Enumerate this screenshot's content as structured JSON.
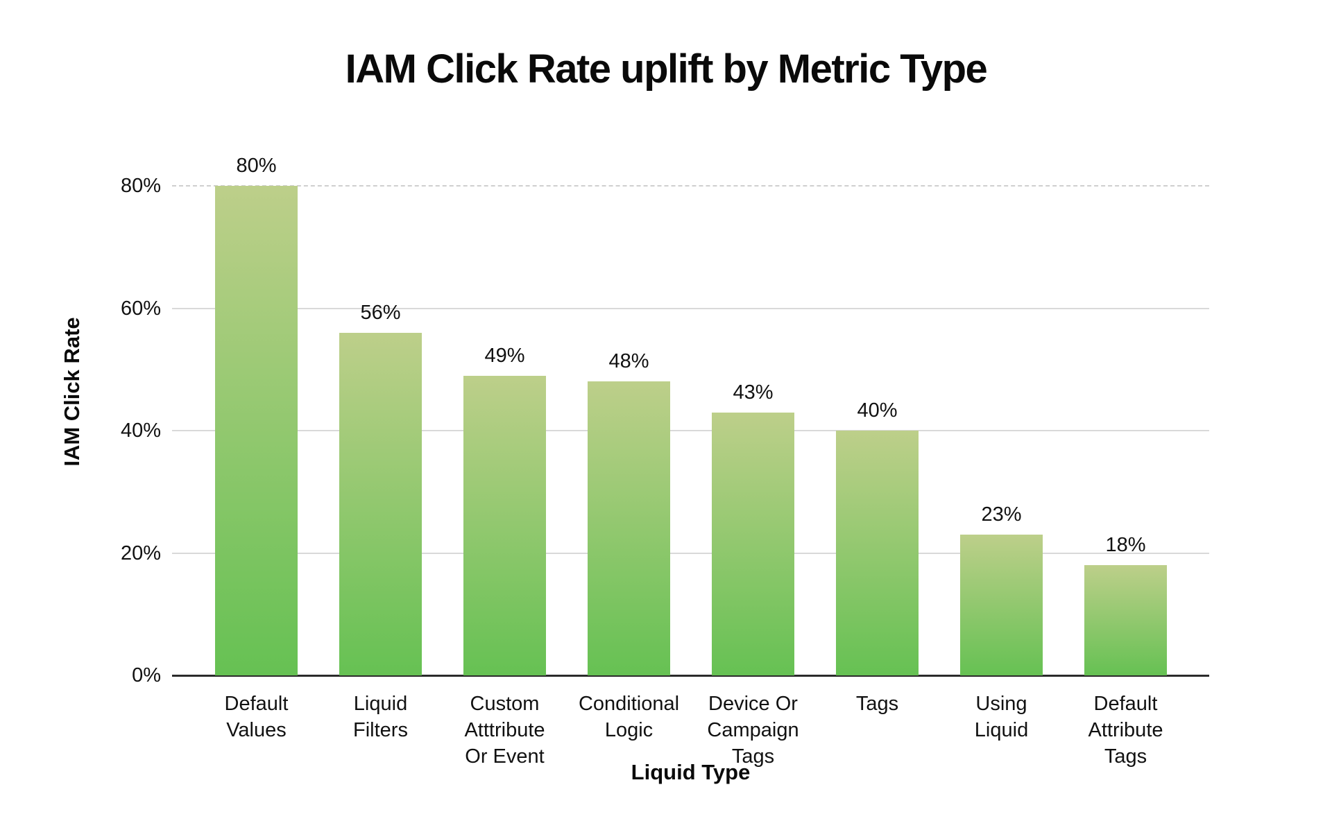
{
  "title": "IAM Click Rate uplift by Metric Type",
  "chart_data": {
    "type": "bar",
    "title": "IAM Click Rate uplift by Metric Type",
    "xlabel": "Liquid Type",
    "ylabel": "IAM Click Rate",
    "categories": [
      "Default Values",
      "Liquid Filters",
      "Custom Atttribute Or Event",
      "Conditional Logic",
      "Device Or Campaign Tags",
      "Tags",
      "Using Liquid",
      "Default Attribute Tags"
    ],
    "category_lines": [
      [
        "Default",
        "Values"
      ],
      [
        "Liquid",
        "Filters"
      ],
      [
        "Custom",
        "Atttribute",
        "Or Event"
      ],
      [
        "Conditional",
        "Logic"
      ],
      [
        "Device Or",
        "Campaign",
        "Tags"
      ],
      [
        "Tags"
      ],
      [
        "Using",
        "Liquid"
      ],
      [
        "Default",
        "Attribute",
        "Tags"
      ]
    ],
    "values": [
      80,
      56,
      49,
      48,
      43,
      40,
      23,
      18
    ],
    "value_labels": [
      "80%",
      "56%",
      "49%",
      "48%",
      "43%",
      "40%",
      "23%",
      "18%"
    ],
    "ylim": [
      0,
      80
    ],
    "ytick_values": [
      0,
      20,
      40,
      60,
      80
    ],
    "ytick_labels": [
      "0%",
      "20%",
      "40%",
      "60%",
      "80%"
    ],
    "grid": true,
    "legend": false,
    "colors": {
      "bar_gradient_top": "#bdcf8a",
      "bar_gradient_bottom": "#66c153",
      "gridline": "#d9d9d9",
      "axis_line": "#2b2b2b",
      "text": "#0d0d0d"
    }
  }
}
